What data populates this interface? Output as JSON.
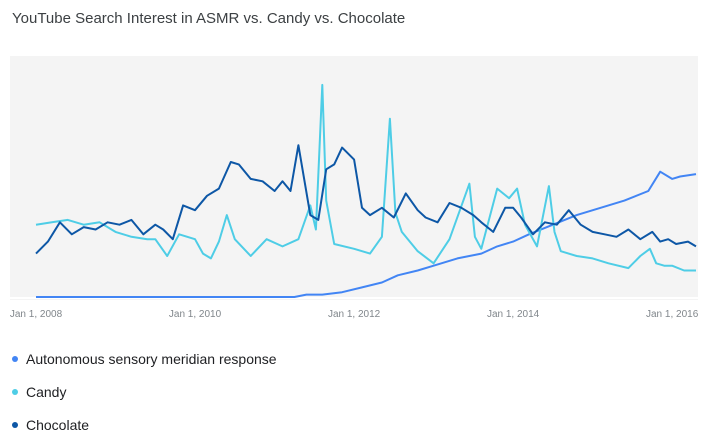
{
  "chart_data": {
    "type": "line",
    "title": "YouTube Search Interest in ASMR vs. Candy vs. Chocolate",
    "x_tick_labels": [
      "Jan 1, 2008",
      "Jan 1, 2010",
      "Jan 1, 2012",
      "Jan 1, 2014",
      "Jan 1, 2016"
    ],
    "x_range": [
      2008.0,
      2016.3
    ],
    "ylim": [
      0,
      100
    ],
    "grid": false,
    "legend_position": "bottom",
    "series": [
      {
        "name": "Autonomous sensory meridian response",
        "color": "#4285f4",
        "x": [
          2008.0,
          2011.25,
          2011.4,
          2011.6,
          2011.85,
          2012.1,
          2012.35,
          2012.55,
          2012.8,
          2013.0,
          2013.3,
          2013.6,
          2013.8,
          2014.0,
          2014.2,
          2014.5,
          2014.8,
          2015.1,
          2015.4,
          2015.7,
          2015.85,
          2016.0,
          2016.1,
          2016.3
        ],
        "values": [
          0,
          0,
          1,
          1,
          2,
          4,
          6,
          9,
          11,
          13,
          16,
          18,
          21,
          23,
          26,
          30,
          34,
          37,
          40,
          44,
          52,
          49,
          50,
          51
        ]
      },
      {
        "name": "Candy",
        "color": "#4ecde6",
        "x": [
          2008.0,
          2008.2,
          2008.4,
          2008.6,
          2008.8,
          2009.0,
          2009.2,
          2009.4,
          2009.5,
          2009.65,
          2009.8,
          2010.0,
          2010.1,
          2010.2,
          2010.3,
          2010.4,
          2010.5,
          2010.7,
          2010.9,
          2011.1,
          2011.3,
          2011.45,
          2011.52,
          2011.6,
          2011.65,
          2011.75,
          2012.0,
          2012.2,
          2012.35,
          2012.45,
          2012.52,
          2012.6,
          2012.8,
          2013.0,
          2013.2,
          2013.45,
          2013.52,
          2013.6,
          2013.8,
          2013.95,
          2014.05,
          2014.15,
          2014.3,
          2014.45,
          2014.52,
          2014.6,
          2014.8,
          2015.0,
          2015.2,
          2015.45,
          2015.6,
          2015.72,
          2015.8,
          2015.9,
          2016.0,
          2016.15,
          2016.3
        ],
        "values": [
          30,
          31,
          32,
          30,
          31,
          27,
          25,
          24,
          24,
          17,
          26,
          24,
          18,
          16,
          23,
          34,
          24,
          17,
          24,
          21,
          24,
          38,
          28,
          88,
          40,
          22,
          20,
          18,
          25,
          74,
          35,
          27,
          19,
          14,
          24,
          47,
          25,
          20,
          45,
          41,
          45,
          30,
          21,
          46,
          27,
          19,
          17,
          16,
          14,
          12,
          17,
          20,
          14,
          13,
          13,
          11,
          11
        ]
      },
      {
        "name": "Chocolate",
        "color": "#0d57a6",
        "x": [
          2008.0,
          2008.15,
          2008.3,
          2008.45,
          2008.6,
          2008.75,
          2008.9,
          2009.05,
          2009.2,
          2009.35,
          2009.5,
          2009.6,
          2009.72,
          2009.85,
          2010.0,
          2010.15,
          2010.3,
          2010.45,
          2010.55,
          2010.7,
          2010.85,
          2011.0,
          2011.1,
          2011.2,
          2011.3,
          2011.45,
          2011.55,
          2011.65,
          2011.75,
          2011.85,
          2012.0,
          2012.1,
          2012.2,
          2012.35,
          2012.5,
          2012.65,
          2012.8,
          2012.9,
          2013.05,
          2013.2,
          2013.35,
          2013.5,
          2013.6,
          2013.75,
          2013.9,
          2014.0,
          2014.1,
          2014.25,
          2014.4,
          2014.55,
          2014.7,
          2014.85,
          2015.0,
          2015.15,
          2015.3,
          2015.45,
          2015.6,
          2015.75,
          2015.85,
          2015.95,
          2016.05,
          2016.2,
          2016.3
        ],
        "values": [
          18,
          23,
          31,
          26,
          29,
          28,
          31,
          30,
          32,
          26,
          30,
          28,
          24,
          38,
          36,
          42,
          45,
          56,
          55,
          49,
          48,
          44,
          48,
          44,
          63,
          34,
          32,
          53,
          55,
          62,
          57,
          37,
          34,
          37,
          33,
          43,
          36,
          33,
          31,
          39,
          37,
          34,
          31,
          27,
          37,
          37,
          33,
          26,
          31,
          30,
          36,
          30,
          27,
          26,
          25,
          28,
          24,
          27,
          23,
          24,
          22,
          23,
          21
        ]
      }
    ]
  }
}
